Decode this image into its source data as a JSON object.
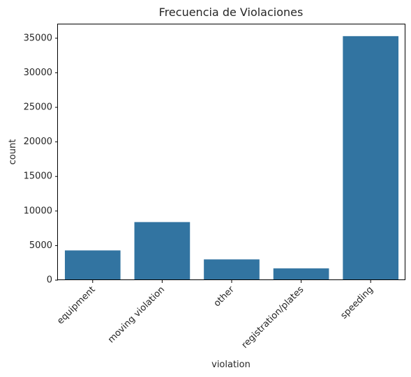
{
  "chart_data": {
    "type": "bar",
    "title": "Frecuencia de Violaciones",
    "xlabel": "violation",
    "ylabel": "count",
    "categories": [
      "equipment",
      "moving violation",
      "other",
      "registration/plates",
      "speeding"
    ],
    "values": [
      4300,
      8400,
      3000,
      1700,
      35300
    ],
    "ylim": [
      0,
      37000
    ],
    "yticks": [
      0,
      5000,
      10000,
      15000,
      20000,
      25000,
      30000,
      35000
    ],
    "bar_color": "#3274a1",
    "grid": false,
    "legend": "none"
  }
}
